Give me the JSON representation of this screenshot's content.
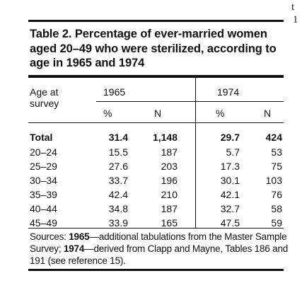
{
  "stray_marks": [
    "t",
    "1"
  ],
  "table": {
    "title": "Table 2. Percentage of ever-married women aged 20–49 who were sterilized, according to age in 1965 and 1974",
    "header": {
      "age_label_line1": "Age at",
      "age_label_line2": "survey",
      "year1": "1965",
      "year2": "1974",
      "pct": "%",
      "n": "N"
    },
    "rows": [
      {
        "age": "Total",
        "pct1965": "31.4",
        "n1965": "1,148",
        "pct1974": "29.7",
        "n1974": "424"
      },
      {
        "age": "20–24",
        "pct1965": "15.5",
        "n1965": "187",
        "pct1974": "5.7",
        "n1974": "53"
      },
      {
        "age": "25–29",
        "pct1965": "27.6",
        "n1965": "203",
        "pct1974": "17.3",
        "n1974": "75"
      },
      {
        "age": "30–34",
        "pct1965": "33.7",
        "n1965": "196",
        "pct1974": "30.1",
        "n1974": "103"
      },
      {
        "age": "35–39",
        "pct1965": "42.4",
        "n1965": "210",
        "pct1974": "42.1",
        "n1974": "76"
      },
      {
        "age": "40–44",
        "pct1965": "34.8",
        "n1965": "187",
        "pct1974": "32.7",
        "n1974": "58"
      },
      {
        "age": "45–49",
        "pct1965": "33.9",
        "n1965": "165",
        "pct1974": "47.5",
        "n1974": "59"
      }
    ],
    "sources": {
      "label": "Sources: ",
      "year1": "1965",
      "text1": "—additional tabulations from the Master Sample Survey; ",
      "year2": "1974",
      "text2": "—derived from Clapp and Mayne, Tables 186 and 191 (see reference 15)."
    }
  }
}
